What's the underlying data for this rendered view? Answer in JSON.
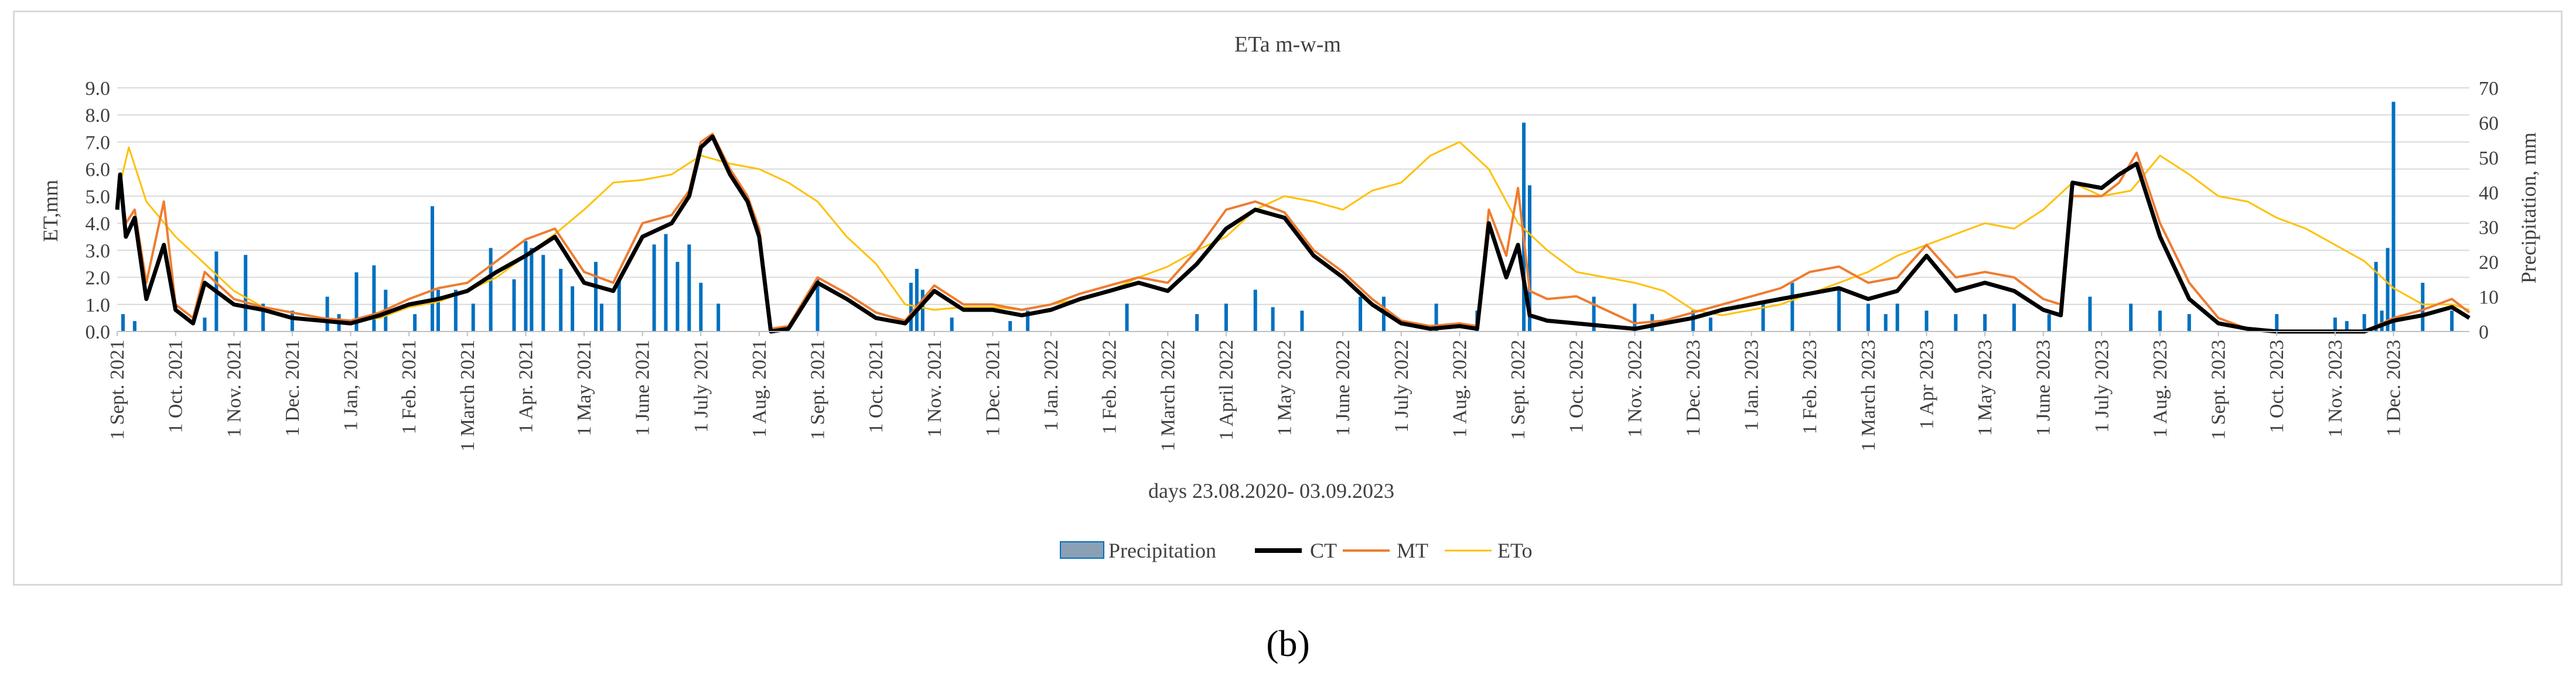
{
  "panel_label": "(b)",
  "chart_data": {
    "type": "line",
    "title": "ETa m-w-m",
    "xlabel": "days 23.08.2020- 03.09.2023",
    "ylabel_left": "ET,mm",
    "ylabel_right": "Precipitation, mm",
    "ylim_left": [
      0,
      9
    ],
    "ylim_right": [
      0,
      70
    ],
    "yticks_left": [
      "0.0",
      "1.0",
      "2.0",
      "3.0",
      "4.0",
      "5.0",
      "6.0",
      "7.0",
      "8.0",
      "9.0"
    ],
    "yticks_right": [
      "0",
      "10",
      "20",
      "30",
      "40",
      "50",
      "60",
      "70"
    ],
    "x_tick_labels": [
      "1 Sept. 2021",
      "1 Oct. 2021",
      "1 Nov. 2021",
      "1 Dec. 2021",
      "1 Jan, 2021",
      "1 Feb. 2021",
      "1 March 2021",
      "1 Apr. 2021",
      "1 May 2021",
      "1 June 2021",
      "1 July 2021",
      "1 Aug. 2021",
      "1 Sept. 2021",
      "1 Oct. 2021",
      "1 Nov. 2021",
      "1 Dec. 2021",
      "1 Jan. 2022",
      "1 Feb. 2022",
      "1 March 2022",
      "1 April 2022",
      "1 May 2022",
      "1 June 2022",
      "1 July 2022",
      "1 Aug. 2022",
      "1 Sept. 2022",
      "1 Oct. 2022",
      "1 Nov. 2022",
      "1 Dec. 2023",
      "1 Jan. 2023",
      "1 Feb. 2023",
      "1 March 2023",
      "1 Apr 2023",
      "1 May 2023",
      "1 June 2023",
      "1 July 2023",
      "1 Aug. 2023",
      "1 Sept. 2023",
      "1 Oct. 2023",
      "1 Nov. 2023",
      "1 Dec. 2023"
    ],
    "x_months_range": [
      0,
      40.3
    ],
    "legend": {
      "position": "bottom",
      "entries": [
        "Precipitation",
        "CT",
        "MT",
        "ETo"
      ]
    },
    "colors": {
      "Precipitation": "#0070c0",
      "CT": "#000000",
      "MT": "#ed7d31",
      "ETo": "#ffc000"
    },
    "series": [
      {
        "name": "CT",
        "axis": "left",
        "style": "line",
        "x": [
          0,
          0.05,
          0.15,
          0.3,
          0.5,
          0.8,
          1,
          1.3,
          1.5,
          2,
          2.5,
          3,
          3.5,
          4,
          4.5,
          5,
          5.5,
          6,
          6.5,
          7,
          7.5,
          8,
          8.5,
          9,
          9.5,
          9.8,
          10,
          10.2,
          10.5,
          10.8,
          11,
          11.2,
          11.5,
          12,
          12.5,
          13,
          13.5,
          14,
          14.5,
          15,
          15.5,
          16,
          16.5,
          17,
          17.5,
          18,
          18.5,
          19,
          19.5,
          20,
          20.5,
          21,
          21.5,
          22,
          22.5,
          23,
          23.3,
          23.5,
          23.8,
          24,
          24.2,
          24.5,
          25,
          25.5,
          26,
          26.5,
          27,
          27.5,
          28,
          28.5,
          29,
          29.5,
          30,
          30.5,
          31,
          31.5,
          32,
          32.5,
          33,
          33.3,
          33.5,
          34,
          34.3,
          34.6,
          35,
          35.5,
          36,
          36.5,
          37,
          37.5,
          38,
          38.5,
          39,
          39.5,
          40,
          40.3
        ],
        "values": [
          4.5,
          5.8,
          3.5,
          4.2,
          1.2,
          3.2,
          0.8,
          0.3,
          1.8,
          1.0,
          0.8,
          0.5,
          0.4,
          0.3,
          0.6,
          1.0,
          1.2,
          1.5,
          2.2,
          2.8,
          3.5,
          1.8,
          1.5,
          3.5,
          4.0,
          5.0,
          6.8,
          7.2,
          5.8,
          4.8,
          3.5,
          0.0,
          0.1,
          1.8,
          1.2,
          0.5,
          0.3,
          1.5,
          0.8,
          0.8,
          0.6,
          0.8,
          1.2,
          1.5,
          1.8,
          1.5,
          2.5,
          3.8,
          4.5,
          4.2,
          2.8,
          2.0,
          1.0,
          0.3,
          0.1,
          0.2,
          0.1,
          4.0,
          2.0,
          3.2,
          0.6,
          0.4,
          0.3,
          0.2,
          0.1,
          0.3,
          0.5,
          0.8,
          1.0,
          1.2,
          1.4,
          1.6,
          1.2,
          1.5,
          2.8,
          1.5,
          1.8,
          1.5,
          0.8,
          0.6,
          5.5,
          5.3,
          5.8,
          6.2,
          3.5,
          1.2,
          0.3,
          0.1,
          0.0,
          0.0,
          0.0,
          0.0,
          0.4,
          0.6,
          0.9,
          0.5
        ]
      },
      {
        "name": "MT",
        "axis": "left",
        "style": "line",
        "x": [
          0,
          0.05,
          0.15,
          0.3,
          0.5,
          0.8,
          1,
          1.3,
          1.5,
          2,
          2.5,
          3,
          3.5,
          4,
          4.5,
          5,
          5.5,
          6,
          6.5,
          7,
          7.5,
          8,
          8.5,
          9,
          9.5,
          9.8,
          10,
          10.2,
          10.5,
          10.8,
          11,
          11.2,
          11.5,
          12,
          12.5,
          13,
          13.5,
          14,
          14.5,
          15,
          15.5,
          16,
          16.5,
          17,
          17.5,
          18,
          18.5,
          19,
          19.5,
          20,
          20.5,
          21,
          21.5,
          22,
          22.5,
          23,
          23.3,
          23.5,
          23.8,
          24,
          24.2,
          24.5,
          25,
          25.5,
          26,
          26.5,
          27,
          27.5,
          28,
          28.5,
          29,
          29.5,
          30,
          30.5,
          31,
          31.5,
          32,
          32.5,
          33,
          33.3,
          33.5,
          34,
          34.3,
          34.6,
          35,
          35.5,
          36,
          36.5,
          37,
          37.5,
          38,
          38.5,
          39,
          39.5,
          40,
          40.3
        ],
        "values": [
          4.8,
          5.6,
          4.0,
          4.5,
          1.8,
          4.8,
          1.0,
          0.5,
          2.2,
          1.2,
          0.9,
          0.7,
          0.5,
          0.4,
          0.7,
          1.2,
          1.6,
          1.8,
          2.6,
          3.4,
          3.8,
          2.2,
          1.8,
          4.0,
          4.3,
          5.2,
          7.0,
          7.3,
          6.0,
          5.0,
          3.8,
          0.1,
          0.2,
          2.0,
          1.4,
          0.7,
          0.4,
          1.7,
          1.0,
          1.0,
          0.8,
          1.0,
          1.4,
          1.7,
          2.0,
          1.8,
          3.0,
          4.5,
          4.8,
          4.4,
          3.0,
          2.2,
          1.2,
          0.4,
          0.2,
          0.3,
          0.2,
          4.5,
          2.8,
          5.3,
          1.5,
          1.2,
          1.3,
          0.8,
          0.3,
          0.4,
          0.7,
          1.0,
          1.3,
          1.6,
          2.2,
          2.4,
          1.8,
          2.0,
          3.2,
          2.0,
          2.2,
          2.0,
          1.2,
          1.0,
          5.0,
          5.0,
          5.5,
          6.6,
          4.0,
          1.8,
          0.5,
          0.1,
          0.0,
          0.0,
          0.0,
          0.0,
          0.5,
          0.8,
          1.2,
          0.7
        ]
      },
      {
        "name": "ETo",
        "axis": "left",
        "style": "line",
        "x": [
          0,
          0.2,
          0.5,
          1,
          1.5,
          2,
          2.5,
          3,
          3.5,
          4,
          4.5,
          5,
          5.5,
          6,
          6.5,
          7,
          7.5,
          8,
          8.5,
          9,
          9.5,
          10,
          10.5,
          11,
          11.5,
          12,
          12.5,
          13,
          13.5,
          14,
          14.5,
          15,
          15.5,
          16,
          16.5,
          17,
          17.5,
          18,
          18.5,
          19,
          19.5,
          20,
          20.5,
          21,
          21.5,
          22,
          22.5,
          23,
          23.5,
          24,
          24.5,
          25,
          25.5,
          26,
          26.5,
          27,
          27.5,
          28,
          28.5,
          29,
          29.5,
          30,
          30.5,
          31,
          31.5,
          32,
          32.5,
          33,
          33.5,
          34,
          34.5,
          35,
          35.5,
          36,
          36.5,
          37,
          37.5,
          38,
          38.5,
          39,
          39.5,
          40,
          40.3
        ],
        "values": [
          5.0,
          6.8,
          4.8,
          3.5,
          2.5,
          1.5,
          0.9,
          0.7,
          0.5,
          0.4,
          0.5,
          0.9,
          1.1,
          1.5,
          2.0,
          2.8,
          3.6,
          4.5,
          5.5,
          5.6,
          5.8,
          6.5,
          6.2,
          6.0,
          5.5,
          4.8,
          3.5,
          2.5,
          1.0,
          0.8,
          0.9,
          0.9,
          0.8,
          1.0,
          1.2,
          1.5,
          2.0,
          2.4,
          3.0,
          3.5,
          4.5,
          5.0,
          4.8,
          4.5,
          5.2,
          5.5,
          6.5,
          7.0,
          6.0,
          4.0,
          3.0,
          2.2,
          2.0,
          1.8,
          1.5,
          0.8,
          0.6,
          0.8,
          1.0,
          1.4,
          1.8,
          2.2,
          2.8,
          3.2,
          3.6,
          4.0,
          3.8,
          4.5,
          5.5,
          5.0,
          5.2,
          6.5,
          5.8,
          5.0,
          4.8,
          4.2,
          3.8,
          3.2,
          2.6,
          1.6,
          1.0,
          1.0,
          0.8
        ]
      }
    ],
    "precipitation": {
      "name": "Precipitation",
      "axis": "right",
      "style": "bars",
      "x": [
        0.1,
        0.3,
        1.5,
        1.7,
        2.2,
        2.5,
        3.0,
        3.6,
        3.8,
        4.1,
        4.4,
        4.6,
        5.1,
        5.4,
        5.5,
        5.8,
        6.1,
        6.4,
        6.8,
        7.0,
        7.1,
        7.3,
        7.6,
        7.8,
        8.2,
        8.3,
        8.6,
        9.2,
        9.4,
        9.6,
        9.8,
        10.0,
        10.3,
        12.0,
        13.6,
        13.7,
        13.8,
        14.3,
        15.3,
        15.6,
        17.3,
        18.5,
        19.0,
        19.5,
        19.8,
        20.3,
        21.3,
        21.7,
        22.6,
        23.3,
        24.1,
        24.2,
        25.3,
        26.0,
        26.3,
        27.0,
        27.3,
        28.2,
        28.7,
        29.5,
        30.0,
        30.3,
        30.5,
        31.0,
        31.5,
        32.0,
        32.5,
        33.1,
        33.8,
        34.5,
        35.0,
        35.5,
        37.0,
        38.0,
        38.2,
        38.5,
        38.7,
        38.8,
        38.9,
        39.0,
        39.5,
        40.0
      ],
      "values": [
        5,
        3,
        4,
        23,
        22,
        8,
        6,
        10,
        5,
        17,
        19,
        12,
        5,
        36,
        12,
        12,
        8,
        24,
        15,
        26,
        24,
        22,
        18,
        13,
        20,
        8,
        15,
        25,
        28,
        20,
        25,
        14,
        8,
        15,
        14,
        18,
        12,
        4,
        3,
        6,
        8,
        5,
        8,
        12,
        7,
        6,
        10,
        10,
        8,
        6,
        60,
        42,
        10,
        8,
        5,
        6,
        4,
        8,
        14,
        12,
        8,
        5,
        8,
        6,
        5,
        5,
        8,
        5,
        10,
        8,
        6,
        5,
        5,
        4,
        3,
        5,
        20,
        6,
        24,
        66,
        14,
        6
      ]
    }
  }
}
